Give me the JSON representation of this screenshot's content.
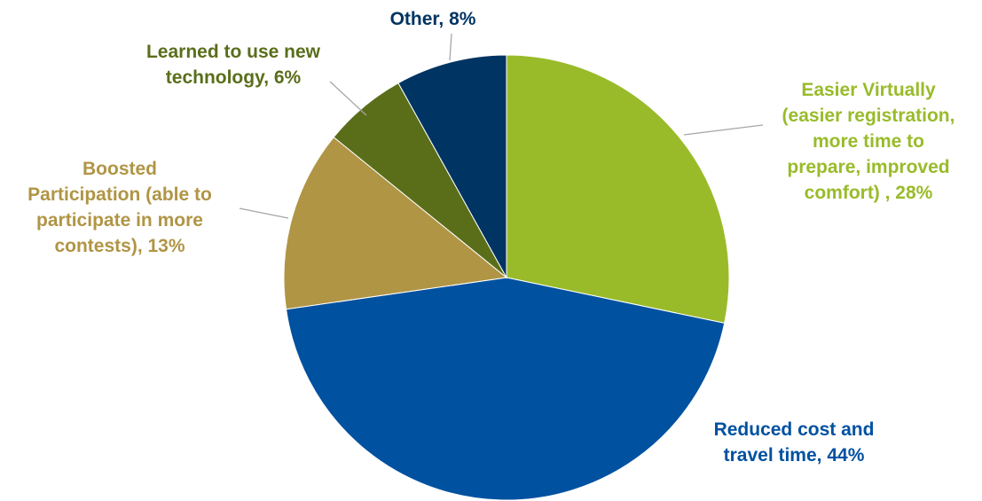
{
  "chart_data": {
    "type": "pie",
    "start_angle_deg": 0,
    "direction": "clockwise",
    "legend": "none",
    "slices": [
      {
        "label_lines": [
          "Easier Virtually",
          "(easier registration,",
          "more time to",
          "prepare, improved",
          "comfort) , 28%"
        ],
        "value": 28,
        "color": "#99bb2a",
        "label_color": "#99bb2a"
      },
      {
        "label_lines": [
          "Reduced cost and",
          "travel time, 44%"
        ],
        "value": 44,
        "color": "#0051a0",
        "label_color": "#0051a0"
      },
      {
        "label_lines": [
          "Boosted",
          "Participation (able to",
          "participate in more",
          "contests), 13%"
        ],
        "value": 13,
        "color": "#b09545",
        "label_color": "#b09545"
      },
      {
        "label_lines": [
          "Learned to use new",
          "technology, 6%"
        ],
        "value": 6,
        "color": "#5a6e1a",
        "label_color": "#5a6e1a"
      },
      {
        "label_lines": [
          "Other, 8%"
        ],
        "value": 8,
        "color": "#003462",
        "label_color": "#003462"
      }
    ],
    "leader_line_color": "#a6a6a6"
  }
}
